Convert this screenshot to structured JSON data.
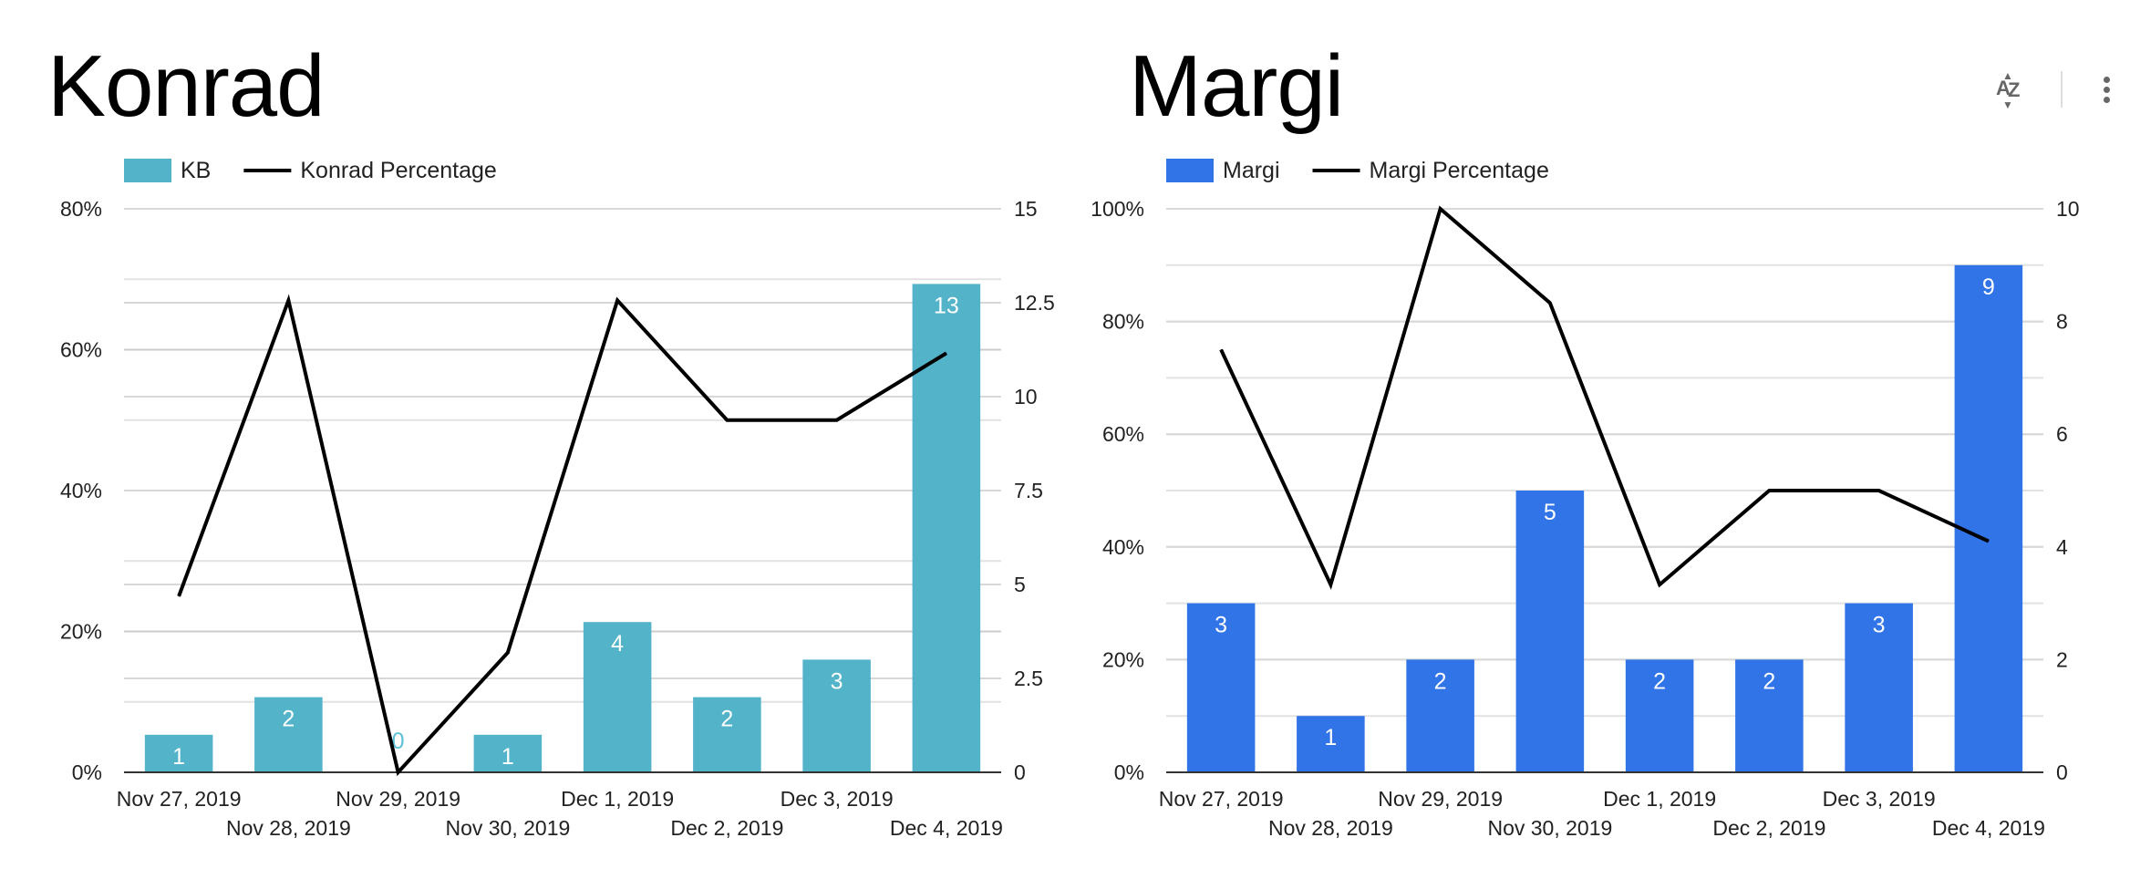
{
  "chart_data": [
    {
      "type": "bar",
      "title": "Konrad",
      "categories": [
        "Nov 27, 2019",
        "Nov 28, 2019",
        "Nov 29, 2019",
        "Nov 30, 2019",
        "Dec 1, 2019",
        "Dec 2, 2019",
        "Dec 3, 2019",
        "Dec 4, 2019"
      ],
      "bar_series": {
        "name": "KB",
        "color": "#53b3c9",
        "values": [
          1,
          2,
          0,
          1,
          4,
          2,
          3,
          13
        ],
        "axis": "right"
      },
      "line_series": {
        "name": "Konrad Percentage",
        "color": "#000000",
        "values": [
          25,
          67,
          0,
          17,
          67,
          50,
          50,
          59.5
        ],
        "axis": "left"
      },
      "left_axis": {
        "min": 0,
        "max": 80,
        "ticks": [
          "0%",
          "20%",
          "40%",
          "60%",
          "80%"
        ]
      },
      "right_axis": {
        "min": 0,
        "max": 15,
        "ticks": [
          "0",
          "2.5",
          "5",
          "7.5",
          "10",
          "12.5",
          "15"
        ]
      },
      "legend_position": "top-left",
      "grid": true
    },
    {
      "type": "bar",
      "title": "Margi",
      "categories": [
        "Nov 27, 2019",
        "Nov 28, 2019",
        "Nov 29, 2019",
        "Nov 30, 2019",
        "Dec 1, 2019",
        "Dec 2, 2019",
        "Dec 3, 2019",
        "Dec 4, 2019"
      ],
      "bar_series": {
        "name": "Margi",
        "color": "#3074e7",
        "values": [
          3,
          1,
          2,
          5,
          2,
          2,
          3,
          9
        ],
        "axis": "right"
      },
      "line_series": {
        "name": "Margi Percentage",
        "color": "#000000",
        "values": [
          75,
          33.3,
          100,
          83.3,
          33.3,
          50,
          50,
          41
        ],
        "axis": "left"
      },
      "left_axis": {
        "min": 0,
        "max": 100,
        "ticks": [
          "0%",
          "20%",
          "40%",
          "60%",
          "80%",
          "100%"
        ]
      },
      "right_axis": {
        "min": 0,
        "max": 10,
        "ticks": [
          "0",
          "2",
          "4",
          "6",
          "8",
          "10"
        ]
      },
      "legend_position": "top-left",
      "grid": true
    }
  ],
  "toolbar": {
    "sort_icon": "sort-az-icon",
    "more_icon": "more-vert-icon",
    "sort_a": "A",
    "sort_z": "Z"
  }
}
